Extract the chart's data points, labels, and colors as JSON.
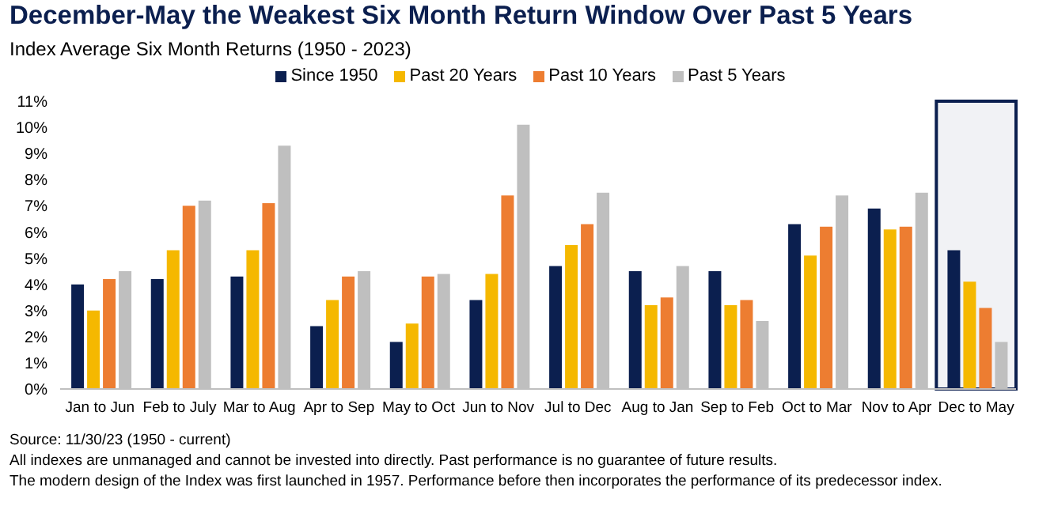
{
  "chart_data": {
    "type": "bar",
    "title": "December-May the Weakest Six Month Return Window Over Past 5 Years",
    "subtitle": "Index Average Six Month Returns (1950 - 2023)",
    "categories": [
      "Jan to Jun",
      "Feb to July",
      "Mar to Aug",
      "Apr to Sep",
      "May to Oct",
      "Jun to Nov",
      "Jul to Dec",
      "Aug to Jan",
      "Sep to Feb",
      "Oct to Mar",
      "Nov to Apr",
      "Dec to May"
    ],
    "series": [
      {
        "name": "Since 1950",
        "color": "#0b1f4f",
        "values": [
          4.0,
          4.2,
          4.3,
          2.4,
          1.8,
          3.4,
          4.7,
          4.5,
          4.5,
          6.3,
          6.9,
          5.3
        ]
      },
      {
        "name": "Past 20 Years",
        "color": "#f5b800",
        "values": [
          3.0,
          5.3,
          5.3,
          3.4,
          2.5,
          4.4,
          5.5,
          3.2,
          3.2,
          5.1,
          6.1,
          4.1
        ]
      },
      {
        "name": "Past 10 Years",
        "color": "#ed7d31",
        "values": [
          4.2,
          7.0,
          7.1,
          4.3,
          4.3,
          7.4,
          6.3,
          3.5,
          3.4,
          6.2,
          6.2,
          3.1
        ]
      },
      {
        "name": "Past 5 Years",
        "color": "#bfbfbf",
        "values": [
          4.5,
          7.2,
          9.3,
          4.5,
          4.4,
          10.1,
          7.5,
          4.7,
          2.6,
          7.4,
          7.5,
          1.8
        ]
      }
    ],
    "ylim": [
      0,
      11
    ],
    "yticks": [
      {
        "value": 0,
        "label": "0%"
      },
      {
        "value": 1,
        "label": "1%"
      },
      {
        "value": 2,
        "label": "2%"
      },
      {
        "value": 3,
        "label": "3%"
      },
      {
        "value": 4,
        "label": "4%"
      },
      {
        "value": 5,
        "label": "5%"
      },
      {
        "value": 6,
        "label": "6%"
      },
      {
        "value": 7,
        "label": "7%"
      },
      {
        "value": 8,
        "label": "8%"
      },
      {
        "value": 9,
        "label": "9%"
      },
      {
        "value": 10,
        "label": "10%"
      },
      {
        "value": 11,
        "label": "11%"
      }
    ],
    "grid": false,
    "legend": "top",
    "bands": [
      {
        "axis": "x",
        "from": "Dec to May",
        "to": "Dec to May",
        "color": "#0b1f4f"
      }
    ],
    "annotations": [
      "Source: 11/30/23 (1950 - current)",
      "All indexes are unmanaged and cannot be invested into directly. Past performance is no guarantee of future results.",
      "The modern design of the Index was first launched in 1957. Performance before then incorporates the performance of its predecessor index."
    ]
  }
}
